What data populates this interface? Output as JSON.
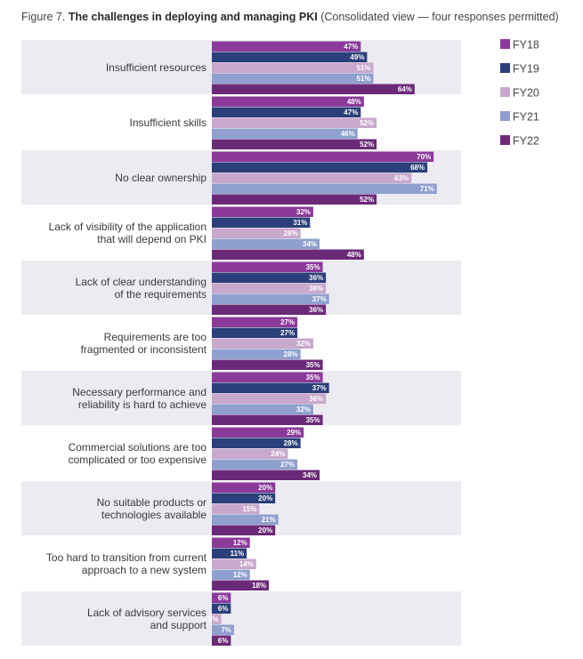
{
  "figure": {
    "label": "Figure 7.",
    "title": "The challenges in deploying and managing PKI",
    "subtitle": "(Consolidated view — four responses permitted)"
  },
  "chart_data": {
    "type": "bar",
    "orientation": "horizontal",
    "title": "The challenges in deploying and managing PKI",
    "subtitle": "(Consolidated view — four responses permitted)",
    "unit": "%",
    "xlim": [
      0,
      100
    ],
    "grid": false,
    "legend_position": "top-right",
    "categories": [
      [
        "Insufficient resources"
      ],
      [
        "Insufficient skills"
      ],
      [
        "No clear ownership"
      ],
      [
        "Lack of visibility of the application",
        "that will depend on PKI"
      ],
      [
        "Lack of clear understanding",
        "of the requirements"
      ],
      [
        "Requirements are too",
        "fragmented or inconsistent"
      ],
      [
        "Necessary performance and",
        "reliability is hard to achieve"
      ],
      [
        "Commercial solutions are too",
        "complicated or too expensive"
      ],
      [
        "No suitable products or",
        "technologies available"
      ],
      [
        "Too hard to transition from current",
        "approach to a new system"
      ],
      [
        "Lack of advisory services",
        "and support"
      ]
    ],
    "series": [
      {
        "name": "FY18",
        "color": "#8b3a9a",
        "values": [
          47,
          48,
          70,
          32,
          35,
          27,
          35,
          29,
          20,
          12,
          6
        ]
      },
      {
        "name": "FY19",
        "color": "#2b3f7a",
        "values": [
          49,
          47,
          68,
          31,
          36,
          27,
          37,
          28,
          20,
          11,
          6
        ]
      },
      {
        "name": "FY20",
        "color": "#c8a8cc",
        "values": [
          51,
          52,
          63,
          28,
          36,
          32,
          36,
          24,
          15,
          14,
          3
        ]
      },
      {
        "name": "FY21",
        "color": "#8fa0cf",
        "values": [
          51,
          46,
          71,
          34,
          37,
          28,
          32,
          27,
          21,
          12,
          7
        ]
      },
      {
        "name": "FY22",
        "color": "#6b2a78",
        "values": [
          64,
          52,
          52,
          48,
          36,
          35,
          35,
          34,
          20,
          18,
          6
        ]
      }
    ]
  }
}
